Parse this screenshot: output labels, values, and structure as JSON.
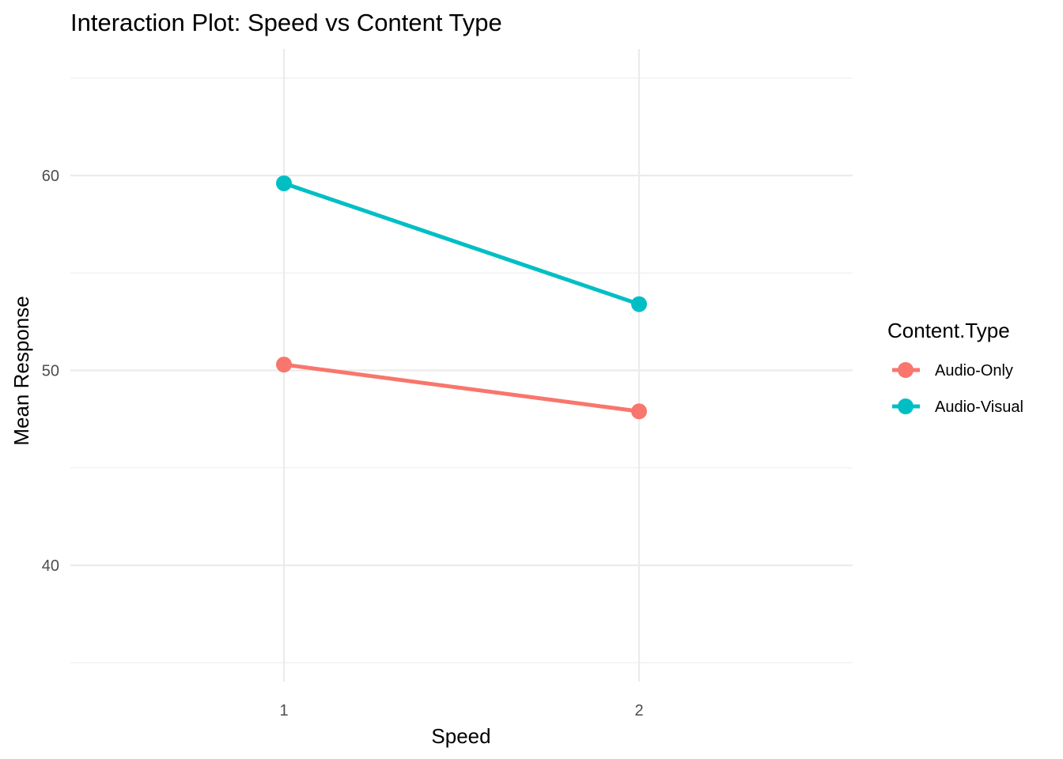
{
  "chart_data": {
    "type": "line",
    "title": "Interaction Plot: Speed vs Content Type",
    "xlabel": "Speed",
    "ylabel": "Mean Response",
    "categories": [
      "1",
      "2"
    ],
    "ylim": [
      35,
      65
    ],
    "yticks": [
      "40",
      "50",
      "60"
    ],
    "ytick_values": [
      40,
      50,
      60
    ],
    "grid": true,
    "legend": {
      "title": "Content.Type",
      "position": "right"
    },
    "series": [
      {
        "name": "Audio-Only",
        "color": "#F8766D",
        "values": [
          50.3,
          47.9
        ]
      },
      {
        "name": "Audio-Visual",
        "color": "#00BFC4",
        "values": [
          59.6,
          53.4
        ]
      }
    ]
  }
}
